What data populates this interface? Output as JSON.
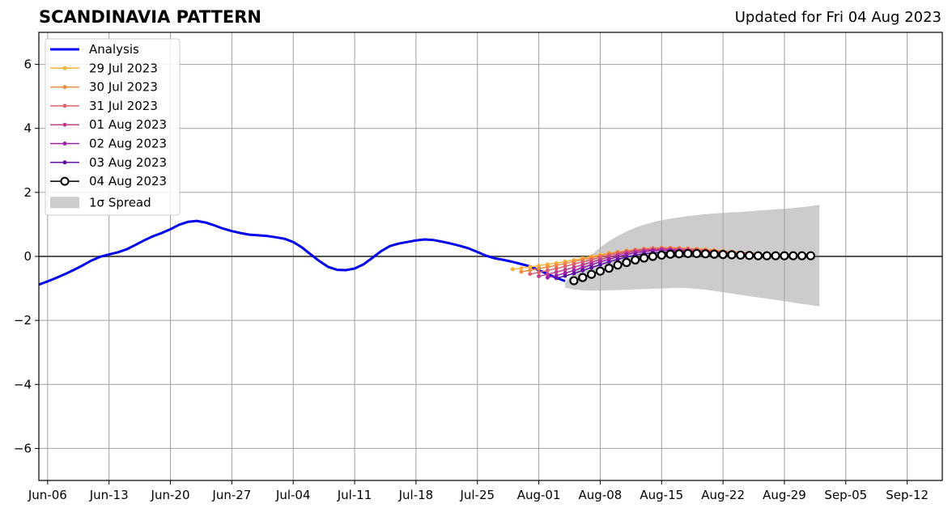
{
  "chart_data": {
    "type": "line",
    "title": "SCANDINAVIA PATTERN",
    "subtitle": "Updated for Fri 04 Aug 2023",
    "xlabel": "",
    "ylabel": "",
    "ylim": [
      -7,
      7
    ],
    "xlim": [
      "2023-06-05",
      "2023-09-16"
    ],
    "y_ticks": [
      -6,
      -4,
      -2,
      0,
      2,
      4,
      6
    ],
    "y_tick_labels": [
      "−6",
      "−4",
      "−2",
      "0",
      "2",
      "4",
      "6"
    ],
    "x_ticks": [
      "2023-06-06",
      "2023-06-13",
      "2023-06-20",
      "2023-06-27",
      "2023-07-04",
      "2023-07-11",
      "2023-07-18",
      "2023-07-25",
      "2023-08-01",
      "2023-08-08",
      "2023-08-15",
      "2023-08-22",
      "2023-08-29",
      "2023-09-05",
      "2023-09-12"
    ],
    "x_tick_labels": [
      "Jun-06",
      "Jun-13",
      "Jun-20",
      "Jun-27",
      "Jul-04",
      "Jul-11",
      "Jul-18",
      "Jul-25",
      "Aug-01",
      "Aug-08",
      "Aug-15",
      "Aug-22",
      "Aug-29",
      "Sep-05",
      "Sep-12"
    ],
    "grid": true,
    "legend_position": "top-left",
    "analysis": {
      "name": "Analysis",
      "color": "#0000ee",
      "x": [
        "2023-06-05",
        "2023-06-06",
        "2023-06-07",
        "2023-06-08",
        "2023-06-09",
        "2023-06-10",
        "2023-06-11",
        "2023-06-12",
        "2023-06-13",
        "2023-06-14",
        "2023-06-15",
        "2023-06-16",
        "2023-06-17",
        "2023-06-18",
        "2023-06-19",
        "2023-06-20",
        "2023-06-21",
        "2023-06-22",
        "2023-06-23",
        "2023-06-24",
        "2023-06-25",
        "2023-06-26",
        "2023-06-27",
        "2023-06-28",
        "2023-06-29",
        "2023-06-30",
        "2023-07-01",
        "2023-07-02",
        "2023-07-03",
        "2023-07-04",
        "2023-07-05",
        "2023-07-06",
        "2023-07-07",
        "2023-07-08",
        "2023-07-09",
        "2023-07-10",
        "2023-07-11",
        "2023-07-12",
        "2023-07-13",
        "2023-07-14",
        "2023-07-15",
        "2023-07-16",
        "2023-07-17",
        "2023-07-18",
        "2023-07-19",
        "2023-07-20",
        "2023-07-21",
        "2023-07-22",
        "2023-07-23",
        "2023-07-24",
        "2023-07-25",
        "2023-07-26",
        "2023-07-27",
        "2023-07-28",
        "2023-07-29",
        "2023-07-30",
        "2023-07-31",
        "2023-08-01",
        "2023-08-02",
        "2023-08-03",
        "2023-08-04"
      ],
      "y": [
        -0.88,
        -0.78,
        -0.67,
        -0.55,
        -0.42,
        -0.28,
        -0.13,
        -0.01,
        0.06,
        0.13,
        0.22,
        0.36,
        0.5,
        0.63,
        0.73,
        0.85,
        0.99,
        1.08,
        1.11,
        1.06,
        0.97,
        0.87,
        0.79,
        0.73,
        0.68,
        0.66,
        0.64,
        0.6,
        0.55,
        0.45,
        0.28,
        0.06,
        -0.15,
        -0.33,
        -0.42,
        -0.43,
        -0.38,
        -0.25,
        -0.05,
        0.16,
        0.32,
        0.4,
        0.45,
        0.5,
        0.53,
        0.51,
        0.46,
        0.4,
        0.33,
        0.25,
        0.14,
        0.02,
        -0.06,
        -0.11,
        -0.17,
        -0.24,
        -0.31,
        -0.43,
        -0.55,
        -0.67,
        -0.77
      ]
    },
    "forecasts": [
      {
        "name": "29 Jul 2023",
        "color": "#f8b43a",
        "x_start": "2023-07-29",
        "y": [
          -0.4,
          -0.37,
          -0.33,
          -0.29,
          -0.25,
          -0.21,
          -0.16,
          -0.11,
          -0.06,
          0.0,
          0.05,
          0.1,
          0.14,
          0.18,
          0.21,
          0.23,
          0.25,
          0.26,
          0.26,
          0.26,
          0.25,
          0.24,
          0.22,
          0.2,
          0.17,
          0.15,
          0.13,
          0.11,
          0.1
        ]
      },
      {
        "name": "30 Jul 2023",
        "color": "#f28b42",
        "x_start": "2023-07-30",
        "y": [
          -0.48,
          -0.43,
          -0.38,
          -0.33,
          -0.28,
          -0.22,
          -0.16,
          -0.1,
          -0.04,
          0.02,
          0.08,
          0.13,
          0.17,
          0.21,
          0.24,
          0.26,
          0.27,
          0.27,
          0.26,
          0.25,
          0.23,
          0.21,
          0.19,
          0.16,
          0.14,
          0.12,
          0.1,
          0.09
        ]
      },
      {
        "name": "31 Jul 2023",
        "color": "#e0636b",
        "x_start": "2023-07-31",
        "y": [
          -0.55,
          -0.5,
          -0.44,
          -0.38,
          -0.31,
          -0.24,
          -0.17,
          -0.1,
          -0.03,
          0.04,
          0.1,
          0.15,
          0.19,
          0.22,
          0.24,
          0.25,
          0.25,
          0.24,
          0.23,
          0.21,
          0.19,
          0.17,
          0.15,
          0.13,
          0.11,
          0.09,
          0.08
        ]
      },
      {
        "name": "01 Aug 2023",
        "color": "#c23f8f",
        "x_start": "2023-08-01",
        "y": [
          -0.62,
          -0.56,
          -0.49,
          -0.42,
          -0.34,
          -0.26,
          -0.18,
          -0.1,
          -0.02,
          0.05,
          0.11,
          0.16,
          0.19,
          0.21,
          0.22,
          0.22,
          0.21,
          0.2,
          0.18,
          0.16,
          0.14,
          0.12,
          0.1,
          0.08,
          0.07,
          0.06
        ]
      },
      {
        "name": "02 Aug 2023",
        "color": "#9c23a8",
        "x_start": "2023-08-02",
        "y": [
          -0.66,
          -0.6,
          -0.52,
          -0.44,
          -0.35,
          -0.26,
          -0.17,
          -0.09,
          -0.01,
          0.06,
          0.11,
          0.15,
          0.18,
          0.19,
          0.19,
          0.18,
          0.17,
          0.15,
          0.13,
          0.11,
          0.09,
          0.07,
          0.06,
          0.05,
          0.04
        ]
      },
      {
        "name": "03 Aug 2023",
        "color": "#5d12a6",
        "x_start": "2023-08-03",
        "y": [
          -0.68,
          -0.61,
          -0.53,
          -0.44,
          -0.35,
          -0.26,
          -0.17,
          -0.09,
          -0.02,
          0.04,
          0.08,
          0.11,
          0.13,
          0.14,
          0.14,
          0.13,
          0.12,
          0.1,
          0.09,
          0.07,
          0.06,
          0.05,
          0.04,
          0.03
        ]
      }
    ],
    "latest": {
      "name": "04 Aug 2023",
      "color": "#000000",
      "x_start": "2023-08-05",
      "y": [
        -0.76,
        -0.66,
        -0.56,
        -0.46,
        -0.37,
        -0.27,
        -0.19,
        -0.11,
        -0.05,
        0.0,
        0.04,
        0.07,
        0.08,
        0.09,
        0.09,
        0.08,
        0.07,
        0.06,
        0.05,
        0.04,
        0.03,
        0.02,
        0.02,
        0.02,
        0.02,
        0.02,
        0.02,
        0.02
      ]
    },
    "spread": {
      "name": "1σ Spread",
      "color": "#cccccc",
      "x_start": "2023-08-04",
      "upper": [
        -0.82,
        -0.5,
        -0.22,
        0.05,
        0.28,
        0.48,
        0.64,
        0.78,
        0.9,
        0.99,
        1.07,
        1.13,
        1.18,
        1.22,
        1.26,
        1.29,
        1.32,
        1.34,
        1.36,
        1.38,
        1.39,
        1.41,
        1.43,
        1.45,
        1.47,
        1.49,
        1.51,
        1.54,
        1.57,
        1.61
      ],
      "lower": [
        -0.98,
        -1.03,
        -1.06,
        -1.07,
        -1.07,
        -1.06,
        -1.05,
        -1.04,
        -1.03,
        -1.02,
        -1.01,
        -1.0,
        -0.99,
        -0.98,
        -0.99,
        -1.01,
        -1.04,
        -1.08,
        -1.12,
        -1.16,
        -1.2,
        -1.24,
        -1.28,
        -1.32,
        -1.36,
        -1.4,
        -1.44,
        -1.48,
        -1.52,
        -1.56
      ]
    },
    "zero_line": 0
  }
}
